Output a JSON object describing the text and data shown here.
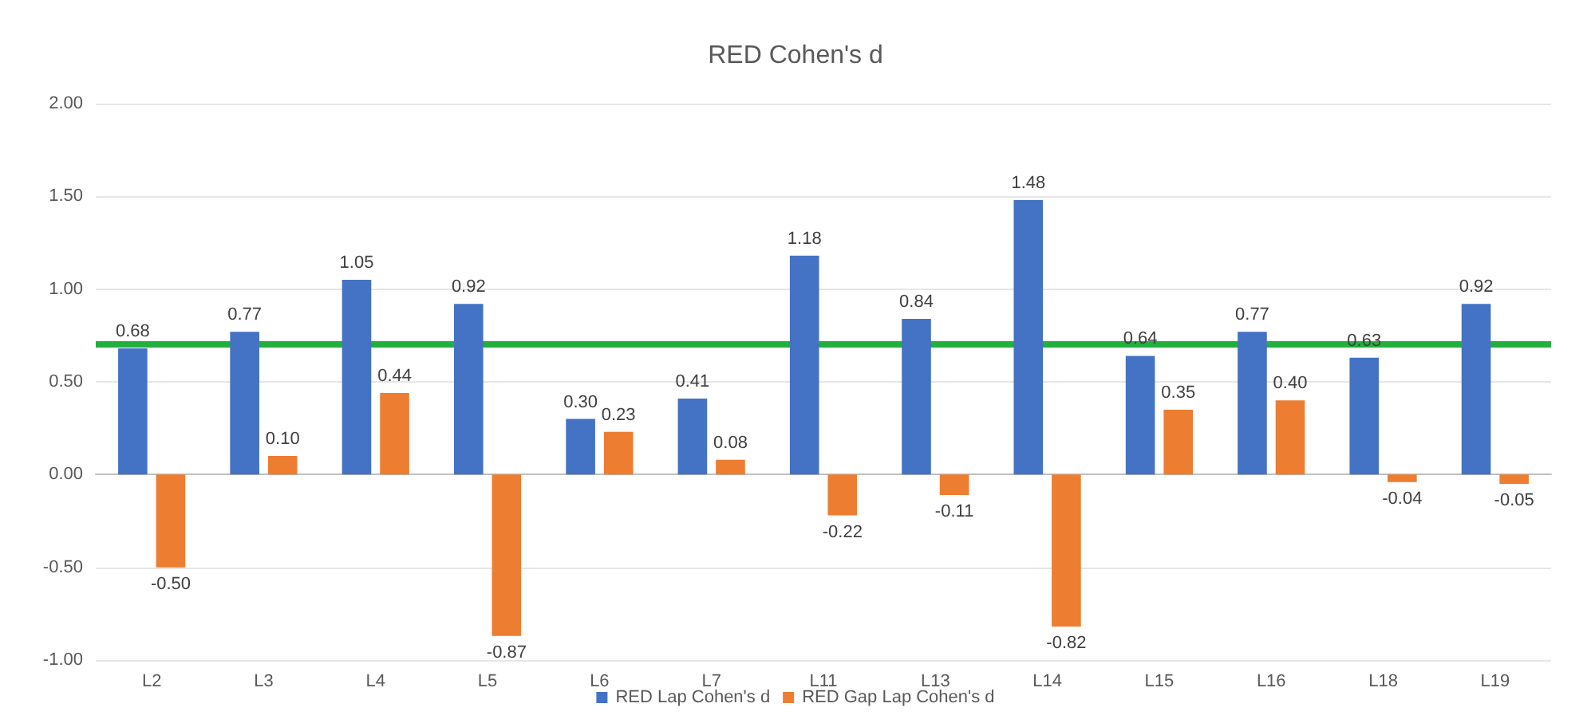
{
  "chart_data": {
    "type": "bar",
    "title": "RED Cohen's d",
    "categories": [
      "L2",
      "L3",
      "L4",
      "L5",
      "L6",
      "L7",
      "L11",
      "L13",
      "L14",
      "L15",
      "L16",
      "L18",
      "L19"
    ],
    "series": [
      {
        "name": "RED Lap Cohen's d",
        "color": "#4472c4",
        "values": [
          0.68,
          0.77,
          1.05,
          0.92,
          0.3,
          0.41,
          1.18,
          0.84,
          1.48,
          0.64,
          0.77,
          0.63,
          0.92
        ],
        "value_labels": [
          "0.68",
          "0.77",
          "1.05",
          "0.92",
          "0.30",
          "0.41",
          "1.18",
          "0.84",
          "1.48",
          "0.64",
          "0.77",
          "0.63",
          "0.92"
        ]
      },
      {
        "name": "RED Gap Lap Cohen's d",
        "color": "#ed7d31",
        "values": [
          -0.5,
          0.1,
          0.44,
          -0.87,
          0.23,
          0.08,
          -0.22,
          -0.11,
          -0.82,
          0.35,
          0.4,
          -0.04,
          -0.05
        ],
        "value_labels": [
          "-0.50",
          "0.10",
          "0.44",
          "-0.87",
          "0.23",
          "0.08",
          "-0.22",
          "-0.11",
          "-0.82",
          "0.35",
          "0.40",
          "-0.04",
          "-0.05"
        ]
      }
    ],
    "ylim": [
      -1,
      2
    ],
    "yticks": [
      {
        "value": -1,
        "label": "-1.00"
      },
      {
        "value": -0.5,
        "label": "-0.50"
      },
      {
        "value": 0,
        "label": "0.00"
      },
      {
        "value": 0.5,
        "label": "0.50"
      },
      {
        "value": 1,
        "label": "1.00"
      },
      {
        "value": 1.5,
        "label": "1.50"
      },
      {
        "value": 2,
        "label": "2.00"
      }
    ],
    "ref_lines": [
      {
        "axis": "y",
        "value": 0.7,
        "color": "#22b03c",
        "line_style": "solid"
      }
    ],
    "grid": "y",
    "legend": "bottom"
  }
}
